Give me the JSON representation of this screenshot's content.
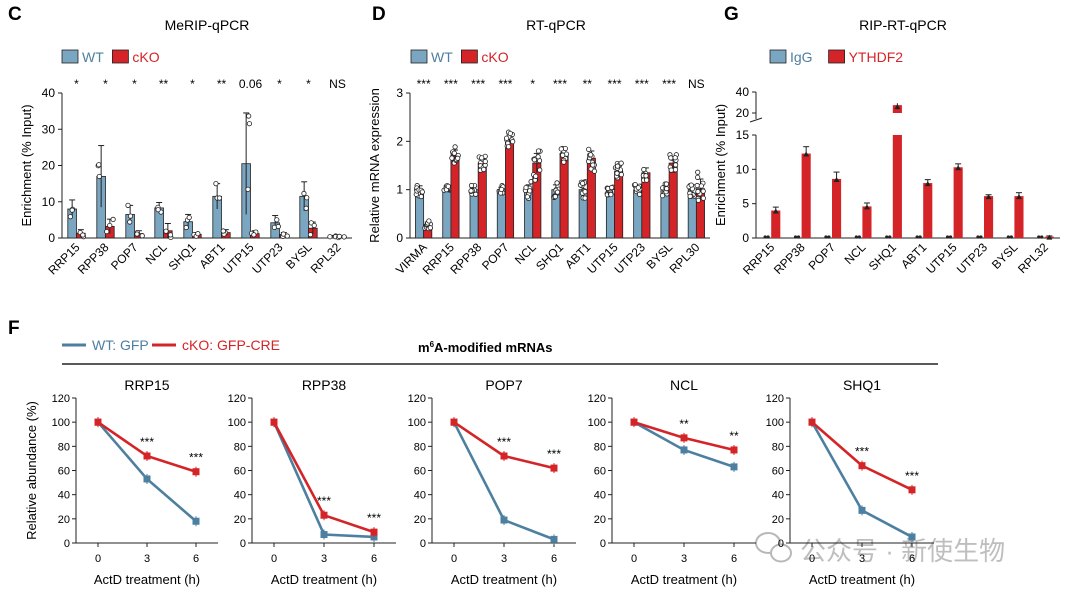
{
  "colors": {
    "wt": "#4d7fa0",
    "wt_fill": "#7aa6c2",
    "ko": "#d42428",
    "ko_fill": "#d42428",
    "axis": "#222222",
    "watermark": "#b8b8b8"
  },
  "panel_f": {
    "letter": "F",
    "legend": {
      "wt": "WT: GFP",
      "ko": "cKO: GFP-CRE"
    },
    "header_pre": "m",
    "header_sup": "6",
    "header_post": "A-modified mRNAs"
  },
  "watermark": {
    "text": "公众号 · 新使生物",
    "icon": "wechat-icon"
  },
  "chart_data": [
    {
      "type": "bar",
      "letter": "C",
      "title": "MeRIP-qPCR",
      "legend": [
        "WT",
        "cKO"
      ],
      "categories": [
        "RRP15",
        "RPP38",
        "POP7",
        "NCL",
        "SHQ1",
        "ABT1",
        "UTP15",
        "UTP23",
        "BYSL",
        "RPL32"
      ],
      "series": [
        {
          "name": "WT",
          "values": [
            8,
            17,
            6.5,
            8.3,
            4.5,
            11.5,
            20.5,
            4.2,
            11.5,
            0.5
          ],
          "errors": [
            2.5,
            8.5,
            2.5,
            1.5,
            2,
            3.5,
            14,
            2,
            4,
            0.2
          ]
        },
        {
          "name": "cKO",
          "values": [
            1.3,
            3.2,
            1.2,
            2,
            1,
            1.5,
            1.2,
            1,
            2.7,
            0.3
          ],
          "errors": [
            1,
            2,
            0.8,
            2,
            0.5,
            0.8,
            0.8,
            0.5,
            1.7,
            0.2
          ]
        }
      ],
      "significance": [
        "*",
        "*",
        "*",
        "**",
        "*",
        "**",
        "0.06",
        "*",
        "*",
        "NS"
      ],
      "ylabel": "Enrichment (% Input)",
      "ylim": [
        0,
        40
      ],
      "yticks": [
        0,
        10,
        20,
        30,
        40
      ]
    },
    {
      "type": "bar",
      "letter": "D",
      "title": "RT-qPCR",
      "legend": [
        "WT",
        "cKO"
      ],
      "categories": [
        "VIRMA",
        "RRP15",
        "RPP38",
        "POP7",
        "NCL",
        "SHQ1",
        "ABT1",
        "UTP15",
        "UTP23",
        "BYSL",
        "RPL30"
      ],
      "series": [
        {
          "name": "WT",
          "values": [
            1,
            1,
            1,
            1,
            1,
            1,
            1,
            1,
            1,
            1,
            1
          ],
          "errors": [
            0.08,
            0.05,
            0.06,
            0.05,
            0.1,
            0.1,
            0.1,
            0.06,
            0.06,
            0.08,
            0.1
          ]
        },
        {
          "name": "cKO",
          "values": [
            0.28,
            1.72,
            1.55,
            2.05,
            1.55,
            1.75,
            1.65,
            1.38,
            1.35,
            1.55,
            1.02
          ],
          "errors": [
            0.05,
            0.1,
            0.1,
            0.1,
            0.2,
            0.1,
            0.15,
            0.1,
            0.1,
            0.1,
            0.2
          ]
        }
      ],
      "significance": [
        "***",
        "***",
        "***",
        "***",
        "*",
        "***",
        "**",
        "***",
        "***",
        "***",
        "NS"
      ],
      "ylabel": "Relative mRNA expression",
      "ylim": [
        0,
        3
      ],
      "yticks": [
        0,
        1,
        2,
        3
      ]
    },
    {
      "type": "bar",
      "letter": "G",
      "title": "RIP-RT-qPCR",
      "legend": [
        "IgG",
        "YTHDF2"
      ],
      "categories": [
        "RRP15",
        "RPP38",
        "POP7",
        "NCL",
        "SHQ1",
        "ABT1",
        "UTP15",
        "UTP23",
        "BYSL",
        "RPL32"
      ],
      "series": [
        {
          "name": "IgG",
          "values": [
            0.1,
            0.1,
            0.1,
            0.1,
            0.1,
            0.1,
            0.1,
            0.1,
            0.1,
            0.1
          ],
          "errors": [
            0,
            0,
            0,
            0,
            0,
            0,
            0,
            0,
            0,
            0
          ]
        },
        {
          "name": "YTHDF2",
          "values": [
            4,
            12.3,
            8.6,
            4.6,
            27.5,
            8,
            10.3,
            6.1,
            6.1,
            0.2
          ],
          "errors": [
            0.5,
            1,
            1,
            0.5,
            3,
            0.5,
            0.5,
            0.2,
            0.5,
            0.1
          ]
        }
      ],
      "ylabel": "Enrichment (% Input)",
      "broken_axis": true,
      "yticks_lower": [
        0,
        5,
        10,
        15
      ],
      "yticks_upper": [
        20,
        40
      ]
    },
    {
      "type": "line",
      "letter": "F",
      "title": "RRP15",
      "x": [
        0,
        3,
        6
      ],
      "xlabel": "ActD treatment (h)",
      "ylabel": "Relative abundance (%)",
      "ylim": [
        0,
        120
      ],
      "yticks": [
        0,
        20,
        40,
        60,
        80,
        100,
        120
      ],
      "series": [
        {
          "name": "WT: GFP",
          "values": [
            100,
            53,
            18
          ]
        },
        {
          "name": "cKO: GFP-CRE",
          "values": [
            100,
            72,
            59
          ]
        }
      ],
      "significance": [
        "",
        "***",
        "***"
      ]
    },
    {
      "type": "line",
      "title": "RPP38",
      "x": [
        0,
        3,
        6
      ],
      "xlabel": "ActD treatment (h)",
      "ylim": [
        0,
        120
      ],
      "yticks": [
        0,
        20,
        40,
        60,
        80,
        100,
        120
      ],
      "series": [
        {
          "name": "WT: GFP",
          "values": [
            100,
            7,
            5
          ]
        },
        {
          "name": "cKO: GFP-CRE",
          "values": [
            100,
            23,
            9
          ]
        }
      ],
      "significance": [
        "",
        "***",
        "***"
      ]
    },
    {
      "type": "line",
      "title": "POP7",
      "x": [
        0,
        3,
        6
      ],
      "xlabel": "ActD treatment (h)",
      "ylim": [
        0,
        120
      ],
      "yticks": [
        0,
        20,
        40,
        60,
        80,
        100,
        120
      ],
      "series": [
        {
          "name": "WT: GFP",
          "values": [
            100,
            19,
            3
          ]
        },
        {
          "name": "cKO: GFP-CRE",
          "values": [
            100,
            72,
            62
          ]
        }
      ],
      "significance": [
        "",
        "***",
        "***"
      ]
    },
    {
      "type": "line",
      "title": "NCL",
      "x": [
        0,
        3,
        6
      ],
      "xlabel": "ActD treatment (h)",
      "ylim": [
        0,
        120
      ],
      "yticks": [
        0,
        20,
        40,
        60,
        80,
        100,
        120
      ],
      "series": [
        {
          "name": "WT: GFP",
          "values": [
            100,
            77,
            63
          ]
        },
        {
          "name": "cKO: GFP-CRE",
          "values": [
            100,
            87,
            77
          ]
        }
      ],
      "significance": [
        "",
        "**",
        "**"
      ]
    },
    {
      "type": "line",
      "title": "SHQ1",
      "x": [
        0,
        3,
        6
      ],
      "xlabel": "ActD treatment (h)",
      "ylim": [
        0,
        120
      ],
      "yticks": [
        0,
        20,
        40,
        60,
        80,
        100,
        120
      ],
      "series": [
        {
          "name": "WT: GFP",
          "values": [
            100,
            27,
            5
          ]
        },
        {
          "name": "cKO: GFP-CRE",
          "values": [
            100,
            64,
            44
          ]
        }
      ],
      "significance": [
        "",
        "***",
        "***"
      ]
    }
  ]
}
